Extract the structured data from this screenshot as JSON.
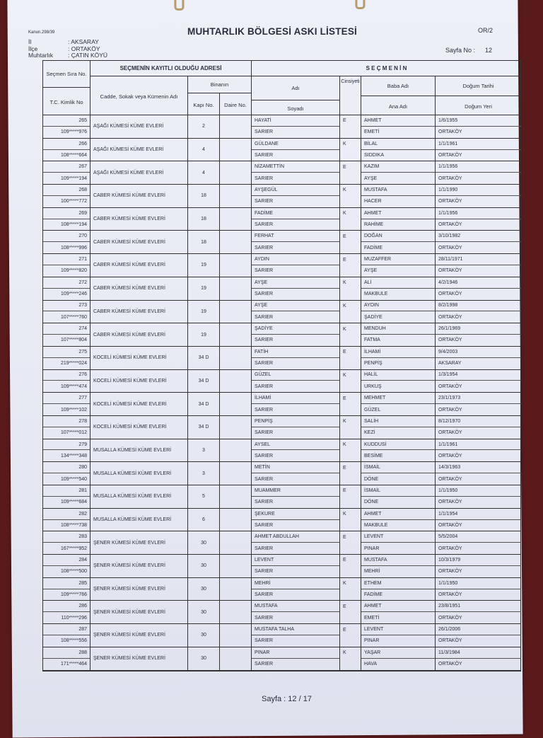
{
  "header": {
    "kanun": "Kanun.298/39",
    "title": "MUHTARLIK BÖLGESİ ASKI LİSTESİ",
    "form_code": "OR/2",
    "il_label": "İl",
    "il": ": AKSARAY",
    "ilce_label": "İlçe",
    "ilce": ": ORTAKÖY",
    "muhtarlik_label": "Muhtarlık",
    "muhtarlik": ": ÇATIN KÖYÜ",
    "sayfa_no_label": "Sayfa No :",
    "sayfa_no": "12"
  },
  "columns": {
    "sira": "Seçmen Sıra No.",
    "tc": "T.C. Kimlik No",
    "adres_group": "SEÇMENİN KAYITLI OLDUĞU ADRESİ",
    "cadde": "Cadde, Sokak veya Kümenin Adı",
    "binanin": "Binanın",
    "kapi": "Kapı No.",
    "daire": "Daire No.",
    "secmen_group": "S E Ç M E N İ N",
    "adi": "Adı",
    "soyadi": "Soyadı",
    "cinsiyet": "Cinsiyeti",
    "baba": "Baba Adı",
    "ana": "Ana Adı",
    "dogum_tarihi": "Doğum Tarihi",
    "dogum_yeri": "Doğum Yeri"
  },
  "rows": [
    {
      "sira": "265",
      "tc": "109*****976",
      "adres": "AŞAĞI KÜMESİ KÜME EVLERİ",
      "kapi": "2",
      "daire": "",
      "adi": "HAYATİ",
      "soyadi": "SARIER",
      "cinsiyet": "E",
      "baba": "AHMET",
      "ana": "EMETİ",
      "dogum_tarihi": "1/6/1955",
      "dogum_yeri": "ORTAKÖY"
    },
    {
      "sira": "266",
      "tc": "108*****664",
      "adres": "AŞAĞI KÜMESİ KÜME EVLERİ",
      "kapi": "4",
      "daire": "",
      "adi": "GÜLDANE",
      "soyadi": "SARIER",
      "cinsiyet": "K",
      "baba": "BİLAL",
      "ana": "SIDDIKA",
      "dogum_tarihi": "1/1/1961",
      "dogum_yeri": "ORTAKÖY"
    },
    {
      "sira": "267",
      "tc": "109*****194",
      "adres": "AŞAĞI KÜMESİ KÜME EVLERİ",
      "kapi": "4",
      "daire": "",
      "adi": "NİZAMETTİN",
      "soyadi": "SARIER",
      "cinsiyet": "E",
      "baba": "KAZIM",
      "ana": "AYŞE",
      "dogum_tarihi": "1/1/1956",
      "dogum_yeri": "ORTAKÖY"
    },
    {
      "sira": "268",
      "tc": "100*****772",
      "adres": "CABER KÜMESİ KÜME EVLERİ",
      "kapi": "18",
      "daire": "",
      "adi": "AYŞEGÜL",
      "soyadi": "SARIER",
      "cinsiyet": "K",
      "baba": "MUSTAFA",
      "ana": "HACER",
      "dogum_tarihi": "1/1/1990",
      "dogum_yeri": "ORTAKÖY"
    },
    {
      "sira": "269",
      "tc": "108*****194",
      "adres": "CABER KÜMESİ KÜME EVLERİ",
      "kapi": "18",
      "daire": "",
      "adi": "FADİME",
      "soyadi": "SARIER",
      "cinsiyet": "K",
      "baba": "AHMET",
      "ana": "RAHİME",
      "dogum_tarihi": "1/1/1956",
      "dogum_yeri": "ORTAKÖY"
    },
    {
      "sira": "270",
      "tc": "108*****996",
      "adres": "CABER KÜMESİ KÜME EVLERİ",
      "kapi": "18",
      "daire": "",
      "adi": "FERHAT",
      "soyadi": "SARIER",
      "cinsiyet": "E",
      "baba": "DOĞAN",
      "ana": "FADİME",
      "dogum_tarihi": "3/10/1982",
      "dogum_yeri": "ORTAKÖY"
    },
    {
      "sira": "271",
      "tc": "109*****820",
      "adres": "CABER KÜMESİ KÜME EVLERİ",
      "kapi": "19",
      "daire": "",
      "adi": "AYDIN",
      "soyadi": "SARIER",
      "cinsiyet": "E",
      "baba": "MUZAFFER",
      "ana": "AYŞE",
      "dogum_tarihi": "28/11/1971",
      "dogum_yeri": "ORTAKÖY"
    },
    {
      "sira": "272",
      "tc": "109*****246",
      "adres": "CABER KÜMESİ KÜME EVLERİ",
      "kapi": "19",
      "daire": "",
      "adi": "AYŞE",
      "soyadi": "SARIER",
      "cinsiyet": "K",
      "baba": "ALİ",
      "ana": "MAKBULE",
      "dogum_tarihi": "4/2/1946",
      "dogum_yeri": "ORTAKÖY"
    },
    {
      "sira": "273",
      "tc": "107*****760",
      "adres": "CABER KÜMESİ KÜME EVLERİ",
      "kapi": "19",
      "daire": "",
      "adi": "AYŞE",
      "soyadi": "SARIER",
      "cinsiyet": "K",
      "baba": "AYDIN",
      "ana": "ŞADİYE",
      "dogum_tarihi": "8/2/1998",
      "dogum_yeri": "ORTAKÖY"
    },
    {
      "sira": "274",
      "tc": "107*****804",
      "adres": "CABER KÜMESİ KÜME EVLERİ",
      "kapi": "19",
      "daire": "",
      "adi": "ŞADİYE",
      "soyadi": "SARIER",
      "cinsiyet": "K",
      "baba": "MENDUH",
      "ana": "FATMA",
      "dogum_tarihi": "26/1/1969",
      "dogum_yeri": "ORTAKÖY"
    },
    {
      "sira": "275",
      "tc": "219*****024",
      "adres": "KOCELİ KÜMESİ KÜME EVLERİ",
      "kapi": "34 D",
      "daire": "",
      "adi": "FATİH",
      "soyadi": "SARIER",
      "cinsiyet": "E",
      "baba": "İLHAMİ",
      "ana": "PENPİŞ",
      "dogum_tarihi": "9/4/2003",
      "dogum_yeri": "AKSARAY"
    },
    {
      "sira": "276",
      "tc": "109*****474",
      "adres": "KOCELİ KÜMESİ KÜME EVLERİ",
      "kapi": "34 D",
      "daire": "",
      "adi": "GÜZEL",
      "soyadi": "SARIER",
      "cinsiyet": "K",
      "baba": "HALİL",
      "ana": "URKUŞ",
      "dogum_tarihi": "1/3/1954",
      "dogum_yeri": "ORTAKÖY"
    },
    {
      "sira": "277",
      "tc": "109*****102",
      "adres": "KOCELİ KÜMESİ KÜME EVLERİ",
      "kapi": "34 D",
      "daire": "",
      "adi": "İLHAMİ",
      "soyadi": "SARIER",
      "cinsiyet": "E",
      "baba": "MEHMET",
      "ana": "GÜZEL",
      "dogum_tarihi": "23/1/1973",
      "dogum_yeri": "ORTAKÖY"
    },
    {
      "sira": "278",
      "tc": "107*****012",
      "adres": "KOCELİ KÜMESİ KÜME EVLERİ",
      "kapi": "34 D",
      "daire": "",
      "adi": "PENPİŞ",
      "soyadi": "SARIER",
      "cinsiyet": "K",
      "baba": "SALİH",
      "ana": "KEZİ",
      "dogum_tarihi": "8/12/1970",
      "dogum_yeri": "ORTAKÖY"
    },
    {
      "sira": "279",
      "tc": "134*****348",
      "adres": "MUSALLA KÜMESİ KÜME EVLERİ",
      "kapi": "3",
      "daire": "",
      "adi": "AYSEL",
      "soyadi": "SARIER",
      "cinsiyet": "K",
      "baba": "KUDDUSİ",
      "ana": "BESİME",
      "dogum_tarihi": "1/1/1961",
      "dogum_yeri": "ORTAKÖY"
    },
    {
      "sira": "280",
      "tc": "109*****540",
      "adres": "MUSALLA KÜMESİ KÜME EVLERİ",
      "kapi": "3",
      "daire": "",
      "adi": "METİN",
      "soyadi": "SARIER",
      "cinsiyet": "E",
      "baba": "İSMAİL",
      "ana": "DÖNE",
      "dogum_tarihi": "14/3/1963",
      "dogum_yeri": "ORTAKÖY"
    },
    {
      "sira": "281",
      "tc": "109*****684",
      "adres": "MUSALLA KÜMESİ KÜME EVLERİ",
      "kapi": "5",
      "daire": "",
      "adi": "MUAMMER",
      "soyadi": "SARIER",
      "cinsiyet": "E",
      "baba": "İSMAİL",
      "ana": "DÖNE",
      "dogum_tarihi": "1/1/1950",
      "dogum_yeri": "ORTAKÖY"
    },
    {
      "sira": "282",
      "tc": "108*****738",
      "adres": "MUSALLA KÜMESİ KÜME EVLERİ",
      "kapi": "6",
      "daire": "",
      "adi": "ŞEKURE",
      "soyadi": "SARIER",
      "cinsiyet": "K",
      "baba": "AHMET",
      "ana": "MAKBULE",
      "dogum_tarihi": "1/1/1954",
      "dogum_yeri": "ORTAKÖY"
    },
    {
      "sira": "283",
      "tc": "167*****952",
      "adres": "ŞENER KÜMESİ KÜME EVLERİ",
      "kapi": "30",
      "daire": "",
      "adi": "AHMET ABDULLAH",
      "soyadi": "SARIER",
      "cinsiyet": "E",
      "baba": "LEVENT",
      "ana": "PINAR",
      "dogum_tarihi": "5/5/2004",
      "dogum_yeri": "ORTAKÖY"
    },
    {
      "sira": "284",
      "tc": "108*****500",
      "adres": "ŞENER KÜMESİ KÜME EVLERİ",
      "kapi": "30",
      "daire": "",
      "adi": "LEVENT",
      "soyadi": "SARIER",
      "cinsiyet": "E",
      "baba": "MUSTAFA",
      "ana": "MEHRİ",
      "dogum_tarihi": "10/3/1979",
      "dogum_yeri": "ORTAKÖY"
    },
    {
      "sira": "285",
      "tc": "109*****766",
      "adres": "ŞENER KÜMESİ KÜME EVLERİ",
      "kapi": "30",
      "daire": "",
      "adi": "MEHRİ",
      "soyadi": "SARIER",
      "cinsiyet": "K",
      "baba": "ETHEM",
      "ana": "FADİME",
      "dogum_tarihi": "1/1/1950",
      "dogum_yeri": "ORTAKÖY"
    },
    {
      "sira": "286",
      "tc": "110*****296",
      "adres": "ŞENER KÜMESİ KÜME EVLERİ",
      "kapi": "30",
      "daire": "",
      "adi": "MUSTAFA",
      "soyadi": "SARIER",
      "cinsiyet": "E",
      "baba": "AHMET",
      "ana": "EMETİ",
      "dogum_tarihi": "23/8/1951",
      "dogum_yeri": "ORTAKÖY"
    },
    {
      "sira": "287",
      "tc": "108*****556",
      "adres": "ŞENER KÜMESİ KÜME EVLERİ",
      "kapi": "30",
      "daire": "",
      "adi": "MUSTAFA TALHA",
      "soyadi": "SARIER",
      "cinsiyet": "E",
      "baba": "LEVENT",
      "ana": "PINAR",
      "dogum_tarihi": "26/1/2006",
      "dogum_yeri": "ORTAKÖY"
    },
    {
      "sira": "288",
      "tc": "171*****464",
      "adres": "ŞENER KÜMESİ KÜME EVLERİ",
      "kapi": "30",
      "daire": "",
      "adi": "PINAR",
      "soyadi": "SARIER",
      "cinsiyet": "K",
      "baba": "YAŞAR",
      "ana": "HAVA",
      "dogum_tarihi": "11/3/1984",
      "dogum_yeri": "ORTAKÖY"
    }
  ],
  "footer": {
    "page": "Sayfa : 12 / 17"
  }
}
